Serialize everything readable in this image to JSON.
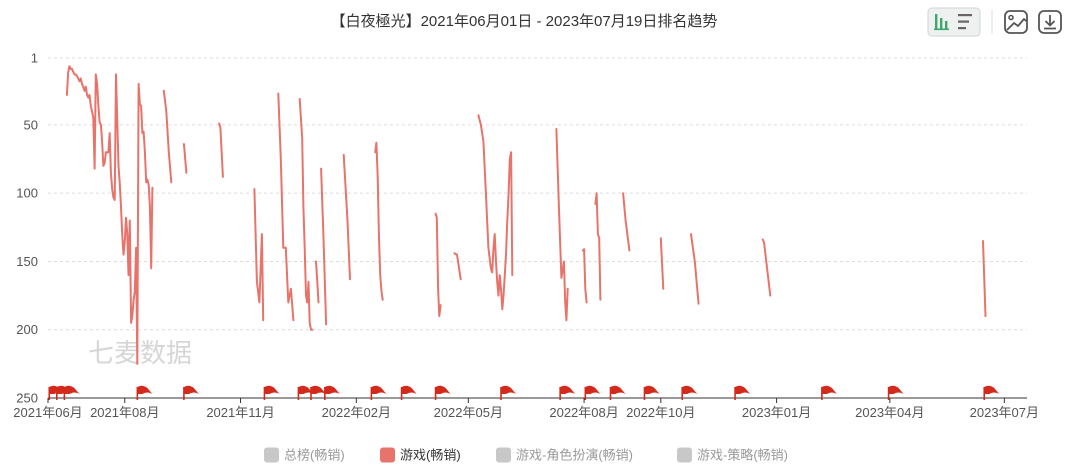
{
  "chart_data": {
    "type": "line",
    "title": "【白夜極光】2021年06月01日 - 2023年07月19日排名趋势",
    "y_reversed": true,
    "ylim": [
      1,
      250
    ],
    "y_ticks": [
      1,
      50,
      100,
      150,
      200,
      250
    ],
    "x_range": [
      "2021-06-01",
      "2023-07-19"
    ],
    "x_ticks": [
      {
        "date": "2021-06-01",
        "label": "2021年06月"
      },
      {
        "date": "2021-08-01",
        "label": "2021年08月"
      },
      {
        "date": "2021-11-01",
        "label": "2021年11月"
      },
      {
        "date": "2022-02-01",
        "label": "2022年02月"
      },
      {
        "date": "2022-05-01",
        "label": "2022年05月"
      },
      {
        "date": "2022-08-01",
        "label": "2022年08月"
      },
      {
        "date": "2022-10-01",
        "label": "2022年10月"
      },
      {
        "date": "2023-01-01",
        "label": "2023年01月"
      },
      {
        "date": "2023-04-01",
        "label": "2023年04月"
      },
      {
        "date": "2023-07-01",
        "label": "2023年07月"
      }
    ],
    "grid": true,
    "legend_position": "bottom",
    "series": [
      {
        "name": "总榜(畅销)",
        "color": "#c8c8c8",
        "active": false,
        "segments": []
      },
      {
        "name": "游戏(畅销)",
        "color": "#e8736a",
        "active": true,
        "segments": [
          [
            [
              "2021-06-16",
              28
            ],
            [
              "2021-06-17",
              12
            ],
            [
              "2021-06-18",
              7
            ],
            [
              "2021-06-19",
              9
            ],
            [
              "2021-06-20",
              9
            ],
            [
              "2021-06-21",
              11
            ],
            [
              "2021-06-22",
              13
            ],
            [
              "2021-06-23",
              13
            ],
            [
              "2021-06-24",
              14
            ],
            [
              "2021-06-25",
              16
            ],
            [
              "2021-06-26",
              18
            ],
            [
              "2021-06-27",
              16
            ],
            [
              "2021-06-28",
              20
            ],
            [
              "2021-06-29",
              22
            ],
            [
              "2021-06-30",
              25
            ],
            [
              "2021-07-01",
              22
            ],
            [
              "2021-07-02",
              28
            ],
            [
              "2021-07-03",
              30
            ],
            [
              "2021-07-04",
              28
            ],
            [
              "2021-07-05",
              36
            ],
            [
              "2021-07-06",
              40
            ],
            [
              "2021-07-07",
              45
            ],
            [
              "2021-07-08",
              82
            ],
            [
              "2021-07-09",
              13
            ],
            [
              "2021-07-10",
              20
            ],
            [
              "2021-07-11",
              35
            ],
            [
              "2021-07-12",
              48
            ],
            [
              "2021-07-13",
              50
            ],
            [
              "2021-07-14",
              62
            ],
            [
              "2021-07-15",
              80
            ],
            [
              "2021-07-16",
              78
            ],
            [
              "2021-07-17",
              70
            ],
            [
              "2021-07-18",
              70
            ],
            [
              "2021-07-19",
              70
            ],
            [
              "2021-07-20",
              56
            ],
            [
              "2021-07-21",
              85
            ],
            [
              "2021-07-22",
              97
            ],
            [
              "2021-07-23",
              103
            ],
            [
              "2021-07-24",
              105
            ],
            [
              "2021-07-25",
              13
            ],
            [
              "2021-07-26",
              45
            ],
            [
              "2021-07-27",
              80
            ],
            [
              "2021-07-28",
              92
            ],
            [
              "2021-07-29",
              110
            ],
            [
              "2021-07-30",
              130
            ],
            [
              "2021-07-31",
              145
            ],
            [
              "2021-08-01",
              135
            ],
            [
              "2021-08-02",
              118
            ],
            [
              "2021-08-03",
              130
            ],
            [
              "2021-08-04",
              160
            ],
            [
              "2021-08-05",
              120
            ],
            [
              "2021-08-06",
              195
            ],
            [
              "2021-08-07",
              190
            ],
            [
              "2021-08-08",
              178
            ],
            [
              "2021-08-09",
              172
            ],
            [
              "2021-08-10",
              140
            ],
            [
              "2021-08-11",
              225
            ],
            [
              "2021-08-12",
              20
            ],
            [
              "2021-08-13",
              35
            ],
            [
              "2021-08-14",
              36
            ],
            [
              "2021-08-15",
              56
            ],
            [
              "2021-08-16",
              55
            ],
            [
              "2021-08-17",
              70
            ],
            [
              "2021-08-18",
              92
            ],
            [
              "2021-08-19",
              90
            ],
            [
              "2021-08-20",
              94
            ],
            [
              "2021-08-21",
              110
            ],
            [
              "2021-08-22",
              155
            ],
            [
              "2021-08-23",
              96
            ]
          ],
          [
            [
              "2021-09-01",
              25
            ],
            [
              "2021-09-03",
              40
            ],
            [
              "2021-09-05",
              70
            ],
            [
              "2021-09-07",
              92
            ]
          ],
          [
            [
              "2021-09-17",
              64
            ],
            [
              "2021-09-19",
              85
            ]
          ],
          [
            [
              "2021-10-15",
              49
            ],
            [
              "2021-10-16",
              52
            ],
            [
              "2021-10-18",
              88
            ]
          ],
          [
            [
              "2021-11-12",
              97
            ],
            [
              "2021-11-14",
              165
            ],
            [
              "2021-11-16",
              180
            ],
            [
              "2021-11-18",
              130
            ],
            [
              "2021-11-19",
              193
            ]
          ],
          [
            [
              "2021-12-01",
              27
            ],
            [
              "2021-12-03",
              75
            ],
            [
              "2021-12-05",
              140
            ],
            [
              "2021-12-07",
              140
            ],
            [
              "2021-12-09",
              180
            ],
            [
              "2021-12-11",
              170
            ],
            [
              "2021-12-13",
              193
            ]
          ],
          [
            [
              "2021-12-18",
              31
            ],
            [
              "2021-12-19",
              45
            ],
            [
              "2021-12-20",
              60
            ],
            [
              "2021-12-21",
              110
            ],
            [
              "2021-12-22",
              140
            ],
            [
              "2021-12-23",
              175
            ],
            [
              "2021-12-24",
              180
            ],
            [
              "2021-12-25",
              165
            ],
            [
              "2021-12-26",
              195
            ],
            [
              "2021-12-27",
              200
            ],
            [
              "2021-12-28",
              200
            ]
          ],
          [
            [
              "2021-12-31",
              150
            ],
            [
              "2022-01-01",
              165
            ],
            [
              "2022-01-02",
              180
            ]
          ],
          [
            [
              "2022-01-04",
              82
            ],
            [
              "2022-01-06",
              135
            ],
            [
              "2022-01-08",
              196
            ]
          ],
          [
            [
              "2022-01-22",
              72
            ],
            [
              "2022-01-25",
              120
            ],
            [
              "2022-01-27",
              163
            ]
          ],
          [
            [
              "2022-02-16",
              70
            ],
            [
              "2022-02-17",
              63
            ],
            [
              "2022-02-18",
              88
            ],
            [
              "2022-02-19",
              130
            ],
            [
              "2022-02-20",
              160
            ],
            [
              "2022-02-21",
              172
            ],
            [
              "2022-02-22",
              178
            ]
          ],
          [
            [
              "2022-04-05",
              115
            ],
            [
              "2022-04-06",
              118
            ],
            [
              "2022-04-07",
              170
            ],
            [
              "2022-04-08",
              190
            ],
            [
              "2022-04-09",
              182
            ]
          ],
          [
            [
              "2022-04-20",
              144
            ],
            [
              "2022-04-22",
              145
            ],
            [
              "2022-04-25",
              163
            ]
          ],
          [
            [
              "2022-05-09",
              43
            ],
            [
              "2022-05-11",
              50
            ],
            [
              "2022-05-13",
              62
            ],
            [
              "2022-05-15",
              100
            ],
            [
              "2022-05-17",
              140
            ],
            [
              "2022-05-19",
              155
            ],
            [
              "2022-05-20",
              158
            ],
            [
              "2022-05-21",
              140
            ],
            [
              "2022-05-22",
              130
            ],
            [
              "2022-05-23",
              150
            ],
            [
              "2022-05-24",
              165
            ],
            [
              "2022-05-25",
              175
            ],
            [
              "2022-05-26",
              160
            ],
            [
              "2022-05-27",
              170
            ],
            [
              "2022-05-28",
              185
            ],
            [
              "2022-05-29",
              175
            ],
            [
              "2022-05-30",
              160
            ],
            [
              "2022-05-31",
              145
            ],
            [
              "2022-06-01",
              120
            ],
            [
              "2022-06-02",
              100
            ],
            [
              "2022-06-03",
              75
            ],
            [
              "2022-06-04",
              70
            ],
            [
              "2022-06-05",
              160
            ]
          ],
          [
            [
              "2022-07-10",
              53
            ],
            [
              "2022-07-12",
              110
            ],
            [
              "2022-07-14",
              162
            ],
            [
              "2022-07-16",
              150
            ],
            [
              "2022-07-17",
              180
            ],
            [
              "2022-07-18",
              193
            ],
            [
              "2022-07-19",
              170
            ]
          ],
          [
            [
              "2022-07-31",
              142
            ],
            [
              "2022-08-01",
              141
            ],
            [
              "2022-08-02",
              170
            ],
            [
              "2022-08-03",
              180
            ]
          ],
          [
            [
              "2022-08-10",
              108
            ],
            [
              "2022-08-11",
              100
            ],
            [
              "2022-08-12",
              130
            ],
            [
              "2022-08-13",
              133
            ],
            [
              "2022-08-14",
              178
            ]
          ],
          [
            [
              "2022-09-01",
              100
            ],
            [
              "2022-09-03",
              120
            ],
            [
              "2022-09-06",
              142
            ]
          ],
          [
            [
              "2022-10-01",
              133
            ],
            [
              "2022-10-03",
              170
            ]
          ],
          [
            [
              "2022-10-25",
              130
            ],
            [
              "2022-10-28",
              150
            ],
            [
              "2022-10-31",
              181
            ]
          ],
          [
            [
              "2022-12-21",
              134
            ],
            [
              "2022-12-22",
              136
            ],
            [
              "2022-12-27",
              175
            ]
          ],
          [
            [
              "2023-06-14",
              135
            ],
            [
              "2023-06-16",
              190
            ]
          ]
        ]
      },
      {
        "name": "游戏-角色扮演(畅销)",
        "color": "#c8c8c8",
        "active": false,
        "segments": []
      },
      {
        "name": "游戏-策略(畅销)",
        "color": "#c8c8c8",
        "active": false,
        "segments": []
      }
    ],
    "event_flags": [
      "2021-06-02",
      "2021-06-08",
      "2021-06-14",
      "2021-08-11",
      "2021-09-17",
      "2021-11-20",
      "2021-12-17",
      "2021-12-27",
      "2022-01-07",
      "2022-02-13",
      "2022-03-09",
      "2022-04-05",
      "2022-05-27",
      "2022-07-13",
      "2022-08-02",
      "2022-08-22",
      "2022-09-18",
      "2022-10-18",
      "2022-11-29",
      "2023-02-06",
      "2023-03-31",
      "2023-06-15"
    ],
    "flag_color": "#d42a1c"
  },
  "watermark": "七麦数据",
  "colors": {
    "grid": "#dddddd",
    "axis": "#333333",
    "inactive_legend": "#999999",
    "active_legend": "#333333"
  },
  "toolbar": {
    "icons": [
      "bar-chart-view-icon",
      "list-view-icon",
      "save-image-icon",
      "download-icon"
    ]
  }
}
